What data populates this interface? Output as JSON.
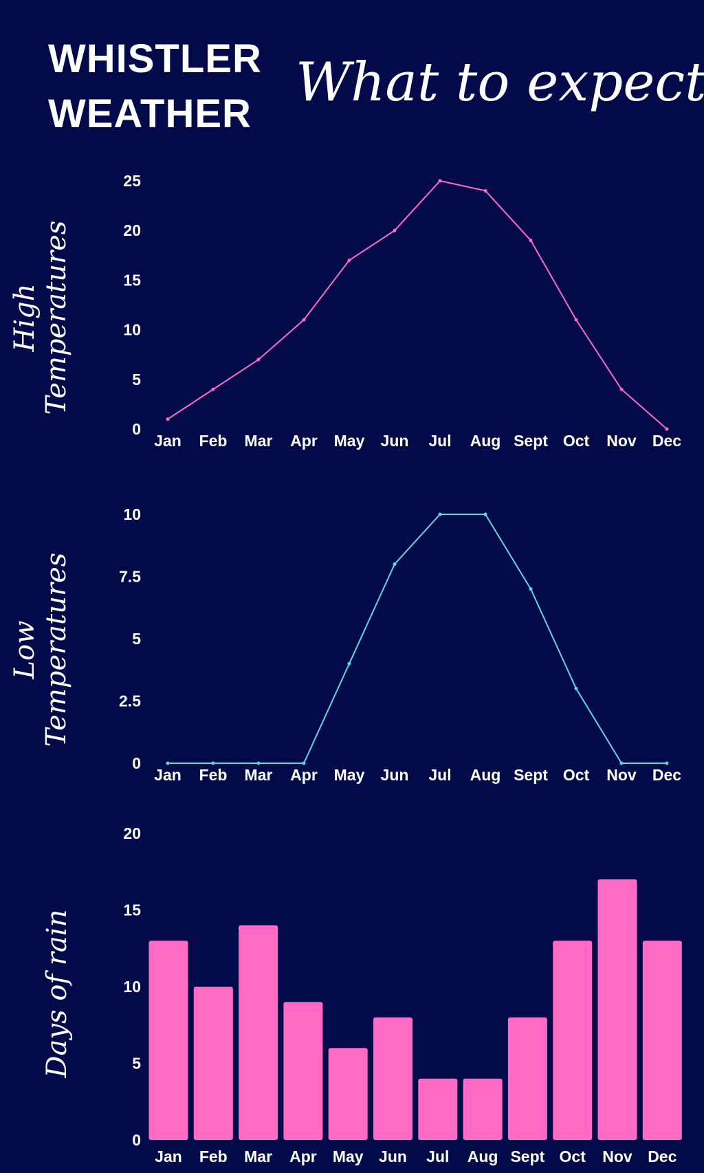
{
  "header": {
    "title_line1": "WHISTLER",
    "title_line2": "WEATHER",
    "subtitle": "What to expect"
  },
  "colors": {
    "background": "#020a4a",
    "high_line": "#ff6ac4",
    "low_line": "#5fd6e6",
    "rain_bar": "#ff6ac4",
    "text": "#ffffff"
  },
  "chart_data": [
    {
      "type": "line",
      "title": "",
      "ylabel_lines": [
        "High",
        "Temperatures"
      ],
      "xlabel": "",
      "categories": [
        "Jan",
        "Feb",
        "Mar",
        "Apr",
        "May",
        "Jun",
        "Jul",
        "Aug",
        "Sept",
        "Oct",
        "Nov",
        "Dec"
      ],
      "series": [
        {
          "name": "High Temperatures",
          "values": [
            1,
            4,
            7,
            11,
            17,
            20,
            25,
            24,
            19,
            11,
            4,
            0
          ]
        }
      ],
      "yticks": [
        0,
        5,
        10,
        15,
        20,
        25
      ],
      "ylim": [
        0,
        25
      ],
      "grid": false
    },
    {
      "type": "line",
      "title": "",
      "ylabel_lines": [
        "Low",
        "Temperatures"
      ],
      "xlabel": "",
      "categories": [
        "Jan",
        "Feb",
        "Mar",
        "Apr",
        "May",
        "Jun",
        "Jul",
        "Aug",
        "Sept",
        "Oct",
        "Nov",
        "Dec"
      ],
      "series": [
        {
          "name": "Low Temperatures",
          "values": [
            0,
            0,
            0,
            0,
            4,
            8,
            10,
            10,
            7,
            3,
            0,
            0
          ]
        }
      ],
      "yticks": [
        0,
        2.5,
        5,
        7.5,
        10
      ],
      "ylim": [
        0,
        10
      ],
      "grid": false
    },
    {
      "type": "bar",
      "title": "",
      "ylabel_lines": [
        "Days of rain"
      ],
      "xlabel": "",
      "categories": [
        "Jan",
        "Feb",
        "Mar",
        "Apr",
        "May",
        "Jun",
        "Jul",
        "Aug",
        "Sept",
        "Oct",
        "Nov",
        "Dec"
      ],
      "series": [
        {
          "name": "Days of rain",
          "values": [
            13,
            10,
            14,
            9,
            6,
            8,
            4,
            4,
            8,
            13,
            17,
            13
          ]
        }
      ],
      "yticks": [
        0,
        5,
        10,
        15,
        20
      ],
      "ylim": [
        0,
        20
      ],
      "grid": false
    }
  ]
}
